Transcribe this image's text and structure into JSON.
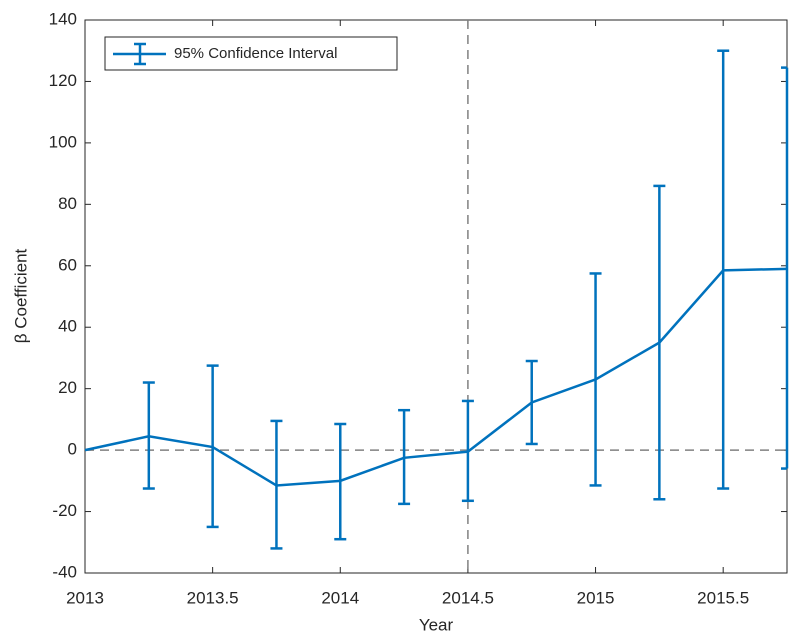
{
  "chart_data": {
    "type": "errorbar-line",
    "x_label": "Year",
    "y_label": "β Coefficient",
    "x": [
      2013,
      2013.25,
      2013.5,
      2013.75,
      2014,
      2014.25,
      2014.5,
      2014.75,
      2015,
      2015.25,
      2015.5,
      2015.75
    ],
    "series": [
      {
        "name": "95% Confidence Interval",
        "color": "#0072bd",
        "values": [
          0,
          4.5,
          1,
          -11.5,
          -10,
          -2.5,
          -0.5,
          15.5,
          23,
          35,
          58.5,
          59
        ],
        "lower": [
          null,
          -12.5,
          -25,
          -32,
          -29,
          -17.5,
          -16.5,
          2,
          -11.5,
          -16,
          -12.5,
          -6
        ],
        "upper": [
          null,
          22,
          27.5,
          9.5,
          8.5,
          13,
          16,
          29,
          57.5,
          86,
          130,
          124.5
        ]
      }
    ],
    "xlim": [
      2013,
      2015.75
    ],
    "xticks": [
      2013,
      2013.5,
      2014,
      2014.5,
      2015,
      2015.5
    ],
    "ylim": [
      -40,
      140
    ],
    "yticks": [
      -40,
      -20,
      0,
      20,
      40,
      60,
      80,
      100,
      120,
      140
    ],
    "hlines": [
      0
    ],
    "vlines": [
      2014.5
    ],
    "legend": "upper-left"
  }
}
